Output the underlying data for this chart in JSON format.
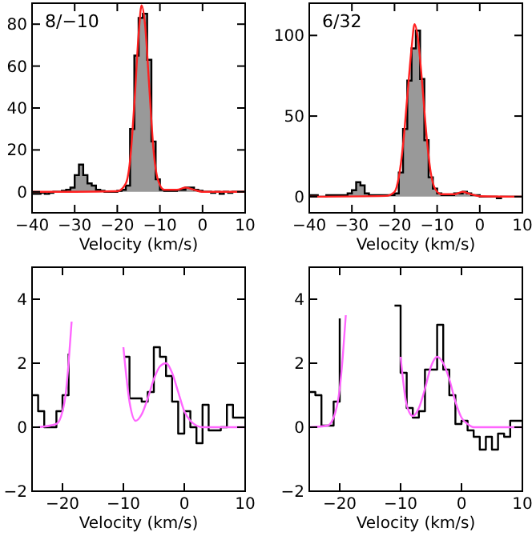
{
  "chart_data": [
    {
      "type": "area",
      "title": "8/−10",
      "xlabel": "Velocity (km/s)",
      "xlim": [
        -40,
        10
      ],
      "xticks": [
        -40,
        -30,
        -20,
        -10,
        0,
        10
      ],
      "ylim": [
        -10,
        90
      ],
      "yticks": [
        0,
        20,
        40,
        60,
        80
      ],
      "series": [
        {
          "color": "#999999",
          "x": [
            -40,
            -39,
            -38,
            -37,
            -36,
            -35,
            -34,
            -33,
            -32,
            -31,
            -30,
            -29,
            -28,
            -27,
            -26,
            -25,
            -24,
            -23,
            -22,
            -21,
            -20,
            -19,
            -18,
            -17,
            -16,
            -15,
            -14,
            -13,
            -12,
            -11,
            -10,
            -9,
            -8,
            -7,
            -6,
            -5,
            -4,
            -3,
            -2,
            -1,
            0,
            1,
            2,
            3,
            4,
            5,
            6,
            7,
            8,
            9,
            10
          ],
          "values": [
            -1,
            -1,
            -0.5,
            -1,
            -0.5,
            0,
            0,
            0.5,
            1,
            2,
            8,
            13,
            8,
            4,
            3,
            1,
            0.5,
            0,
            0,
            0,
            0.5,
            1,
            3,
            30,
            65,
            83,
            85,
            63,
            24,
            6,
            1,
            0.5,
            0.5,
            0.5,
            1,
            1,
            2,
            2,
            1,
            0.5,
            0,
            0,
            -0.5,
            0,
            -1,
            0,
            -0.5,
            0,
            0,
            0,
            0
          ]
        },
        {
          "type": "line",
          "color": "#ff2020",
          "x": [
            -40,
            -30,
            -20,
            -18,
            -17,
            -16,
            -15,
            -14.3,
            -13.5,
            -12.5,
            -11.5,
            -10.5,
            -9,
            -6,
            -4,
            -2,
            0,
            10
          ],
          "values": [
            0,
            0,
            0.3,
            4,
            15,
            42,
            75,
            89,
            80,
            50,
            20,
            6,
            1,
            1,
            2,
            1,
            0,
            0
          ]
        }
      ]
    },
    {
      "type": "area",
      "title": "6/32",
      "xlabel": "Velocity (km/s)",
      "xlim": [
        -40,
        10
      ],
      "xticks": [
        -40,
        -30,
        -20,
        -10,
        0,
        10
      ],
      "ylim": [
        -10,
        120
      ],
      "yticks": [
        0,
        50,
        100
      ],
      "series": [
        {
          "color": "#999999",
          "x": [
            -40,
            -39,
            -38,
            -37,
            -36,
            -35,
            -34,
            -33,
            -32,
            -31,
            -30,
            -29,
            -28,
            -27,
            -26,
            -25,
            -24,
            -23,
            -22,
            -21,
            -20,
            -19,
            -18,
            -17,
            -16,
            -15,
            -14,
            -13,
            -12,
            -11,
            -10,
            -9,
            -8,
            -7,
            -6,
            -5,
            -4,
            -3,
            -2,
            -1,
            0,
            1,
            2,
            3,
            4,
            5,
            6,
            7,
            8,
            9,
            10
          ],
          "values": [
            1,
            1,
            0,
            0,
            1,
            1,
            1,
            1,
            1,
            2,
            4,
            9,
            7,
            2,
            1,
            1,
            1,
            1,
            1,
            1,
            2,
            15,
            42,
            72,
            92,
            103,
            73,
            35,
            12,
            5,
            2,
            1,
            1,
            1,
            2,
            2,
            3,
            2,
            1,
            1,
            0,
            0,
            0,
            0,
            -1,
            0,
            0,
            0,
            0,
            0,
            0
          ]
        },
        {
          "type": "line",
          "color": "#ff2020",
          "x": [
            -40,
            -22,
            -20,
            -19,
            -18,
            -17,
            -16,
            -15.3,
            -14.5,
            -13.5,
            -12.5,
            -11.5,
            -10.5,
            -9,
            -6,
            -4,
            -2,
            0,
            10
          ],
          "values": [
            0,
            0.5,
            3,
            12,
            32,
            62,
            92,
            107,
            98,
            70,
            38,
            15,
            5,
            1.5,
            1.5,
            3,
            1.5,
            0.3,
            0
          ]
        }
      ]
    },
    {
      "type": "step",
      "xlabel": "Velocity (km/s)",
      "xlim": [
        -25,
        10
      ],
      "xticks": [
        -20,
        -10,
        0,
        10
      ],
      "ylim": [
        -2,
        5
      ],
      "yticks": [
        -2,
        0,
        2,
        4
      ],
      "series": [
        {
          "color": "#000000",
          "x": [
            -25,
            -24,
            -23,
            -22,
            -21,
            -20,
            -19,
            -18,
            -17,
            -16,
            -15,
            -14,
            -13,
            -12,
            -11,
            -10,
            -9,
            -8,
            -7,
            -6,
            -5,
            -4,
            -3,
            -2,
            -1,
            0,
            1,
            2,
            3,
            4,
            5,
            6,
            7,
            8,
            9,
            10
          ],
          "values": [
            1.0,
            0.5,
            0,
            0,
            0.5,
            1.0,
            2.3,
            null,
            null,
            null,
            null,
            null,
            null,
            null,
            null,
            2.2,
            0.9,
            0.9,
            0.8,
            1.1,
            2.5,
            2.2,
            1.6,
            0.8,
            -0.2,
            0.5,
            0,
            -0.5,
            0.7,
            -0.1,
            -0.1,
            0,
            0.7,
            0.3,
            0.3,
            0.3
          ]
        },
        {
          "type": "line",
          "color": "#ff66ff",
          "x": [
            -24,
            -21,
            -20,
            -19.5,
            -19,
            -18.5,
            -18,
            -17,
            -11,
            -10.5,
            -10,
            -9,
            -8,
            -7,
            -6,
            -5,
            -4,
            -3,
            -2,
            -1,
            0,
            1,
            2,
            3,
            10
          ],
          "values": [
            0,
            0.1,
            0.5,
            1,
            2,
            3.3,
            null,
            null,
            null,
            null,
            2.5,
            0.8,
            0.2,
            0.4,
            0.9,
            1.5,
            1.9,
            2.0,
            1.7,
            1.1,
            0.5,
            0.2,
            0.05,
            0,
            0
          ]
        }
      ]
    },
    {
      "type": "step",
      "xlabel": "Velocity (km/s)",
      "xlim": [
        -25,
        10
      ],
      "xticks": [
        -20,
        -10,
        0,
        10
      ],
      "ylim": [
        -2,
        5
      ],
      "yticks": [
        -2,
        0,
        2,
        4
      ],
      "series": [
        {
          "color": "#000000",
          "x": [
            -25,
            -24,
            -23,
            -22,
            -21,
            -20,
            -19,
            -18,
            -17,
            -16,
            -15,
            -14,
            -13,
            -12,
            -11,
            -10,
            -9,
            -8,
            -7,
            -6,
            -5,
            -4,
            -3,
            -2,
            -1,
            0,
            1,
            2,
            3,
            4,
            5,
            6,
            7,
            8,
            9,
            10
          ],
          "values": [
            1.1,
            1.0,
            0.05,
            0.05,
            0.8,
            3.4,
            null,
            null,
            null,
            null,
            null,
            null,
            null,
            null,
            3.8,
            1.7,
            0.6,
            0.3,
            0.5,
            1.8,
            1.8,
            3.2,
            1.8,
            1.0,
            0.1,
            0.2,
            -0.1,
            -0.3,
            -0.7,
            -0.3,
            -0.7,
            -0.2,
            -0.3,
            0.2,
            0.2,
            0.2
          ]
        },
        {
          "type": "line",
          "color": "#ff66ff",
          "x": [
            -25,
            -22,
            -21,
            -20,
            -19.5,
            -19,
            -18.5,
            -18,
            -12,
            -11,
            -10,
            -9,
            -8,
            -7,
            -6,
            -5,
            -4,
            -3,
            -2,
            -1,
            0,
            1,
            2,
            10
          ],
          "values": [
            0,
            0.05,
            0.3,
            1.2,
            2.2,
            3.5,
            null,
            null,
            null,
            null,
            2.2,
            0.7,
            0.35,
            0.6,
            1.2,
            1.9,
            2.2,
            2.0,
            1.5,
            0.8,
            0.3,
            0.1,
            0,
            0
          ]
        }
      ]
    }
  ]
}
